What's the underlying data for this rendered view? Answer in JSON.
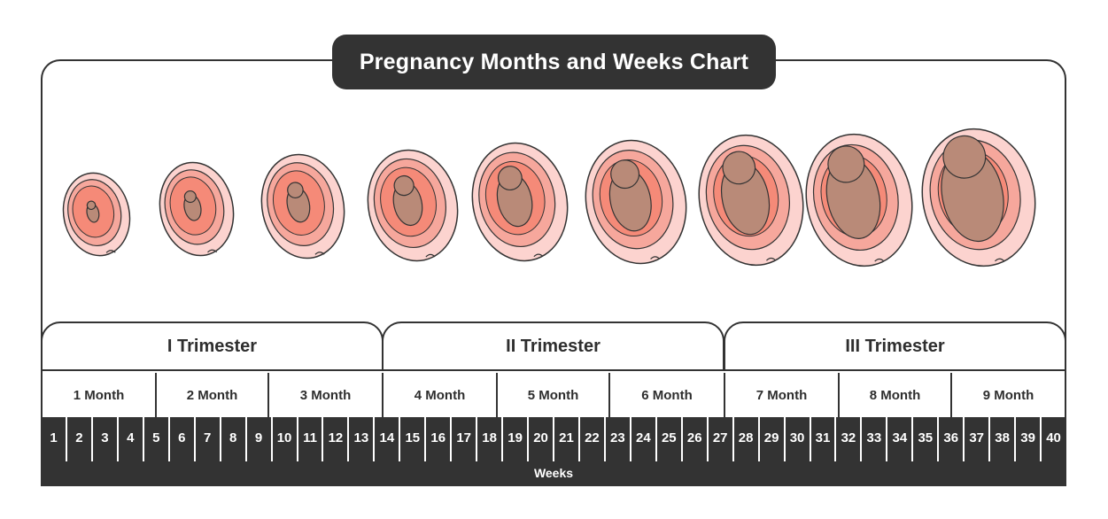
{
  "title": "Pregnancy Months and Weeks Chart",
  "trimesters": [
    "I Trimester",
    "II Trimester",
    "III Trimester"
  ],
  "months": [
    "1 Month",
    "2 Month",
    "3 Month",
    "4 Month",
    "5 Month",
    "6 Month",
    "7 Month",
    "8 Month",
    "9 Month"
  ],
  "weeks": [
    "1",
    "2",
    "3",
    "4",
    "5",
    "6",
    "7",
    "8",
    "9",
    "10",
    "11",
    "12",
    "13",
    "14",
    "15",
    "16",
    "17",
    "18",
    "19",
    "20",
    "21",
    "22",
    "23",
    "24",
    "25",
    "26",
    "27",
    "28",
    "29",
    "30",
    "31",
    "32",
    "33",
    "34",
    "35",
    "36",
    "37",
    "38",
    "39",
    "40"
  ],
  "weeks_label": "Weeks",
  "colors": {
    "dark": "#333333",
    "outer_membrane": "#fcd3cf",
    "inner_sac": "#f6a79c",
    "fluid": "#f58a78",
    "fetus": "#b98a78"
  }
}
